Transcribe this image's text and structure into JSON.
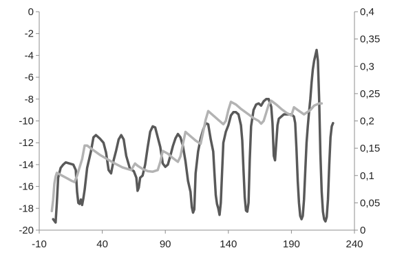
{
  "chart_data": {
    "type": "line",
    "title": "",
    "xlabel": "",
    "ylabel": "",
    "y2label": "",
    "xlim": [
      -10,
      240
    ],
    "ylim": [
      -20,
      0
    ],
    "y2lim": [
      0,
      0.4
    ],
    "x_ticks": [
      {
        "value": -10,
        "label": "-10"
      },
      {
        "value": 40,
        "label": "40"
      },
      {
        "value": 90,
        "label": "90"
      },
      {
        "value": 140,
        "label": "140"
      },
      {
        "value": 190,
        "label": "190"
      },
      {
        "value": 240,
        "label": "240"
      }
    ],
    "y_ticks": [
      {
        "value": 0,
        "label": "0"
      },
      {
        "value": -2,
        "label": "-2"
      },
      {
        "value": -4,
        "label": "-4"
      },
      {
        "value": -6,
        "label": "-6"
      },
      {
        "value": -8,
        "label": "-8"
      },
      {
        "value": -10,
        "label": "-10"
      },
      {
        "value": -12,
        "label": "-12"
      },
      {
        "value": -14,
        "label": "-14"
      },
      {
        "value": -16,
        "label": "-16"
      },
      {
        "value": -18,
        "label": "-18"
      },
      {
        "value": -20,
        "label": "-20"
      }
    ],
    "y2_ticks": [
      {
        "value": 0,
        "label": "0"
      },
      {
        "value": 0.05,
        "label": "0,05"
      },
      {
        "value": 0.1,
        "label": "0,1"
      },
      {
        "value": 0.15,
        "label": "0,15"
      },
      {
        "value": 0.2,
        "label": "0,2"
      },
      {
        "value": 0.25,
        "label": "0,25"
      },
      {
        "value": 0.3,
        "label": "0,3"
      },
      {
        "value": 0.35,
        "label": "0,35"
      },
      {
        "value": 0.4,
        "label": "0,4"
      }
    ],
    "grid": false,
    "legend": "none",
    "series": [
      {
        "axis": "left",
        "color": "#595959",
        "points": [
          [
            1,
            -19
          ],
          [
            3,
            -19.3
          ],
          [
            4,
            -17.5
          ],
          [
            5,
            -15.2
          ],
          [
            7,
            -14.3
          ],
          [
            9,
            -14
          ],
          [
            11,
            -13.8
          ],
          [
            14,
            -13.9
          ],
          [
            17,
            -14
          ],
          [
            19,
            -14.5
          ],
          [
            20,
            -16.5
          ],
          [
            21,
            -17.5
          ],
          [
            22,
            -17.6
          ],
          [
            23,
            -17.2
          ],
          [
            24,
            -17.7
          ],
          [
            25,
            -17.1
          ],
          [
            26,
            -16.3
          ],
          [
            28,
            -14.3
          ],
          [
            31,
            -12.8
          ],
          [
            33,
            -11.5
          ],
          [
            35,
            -11.3
          ],
          [
            38,
            -11.6
          ],
          [
            41,
            -12
          ],
          [
            43,
            -12.9
          ],
          [
            45,
            -14.5
          ],
          [
            47,
            -14.8
          ],
          [
            49,
            -13.6
          ],
          [
            51,
            -12.7
          ],
          [
            53,
            -11.7
          ],
          [
            55,
            -11.3
          ],
          [
            57,
            -11.7
          ],
          [
            59,
            -13.2
          ],
          [
            62,
            -14.4
          ],
          [
            65,
            -14.6
          ],
          [
            67,
            -15.2
          ],
          [
            68,
            -16.4
          ],
          [
            69,
            -16.1
          ],
          [
            70,
            -15.2
          ],
          [
            72,
            -15
          ],
          [
            74,
            -14
          ],
          [
            76,
            -12.4
          ],
          [
            78,
            -11
          ],
          [
            80,
            -10.5
          ],
          [
            82,
            -10.6
          ],
          [
            84,
            -11.5
          ],
          [
            86,
            -12.4
          ],
          [
            88,
            -13.9
          ],
          [
            90,
            -14.2
          ],
          [
            92,
            -14
          ],
          [
            94,
            -13.2
          ],
          [
            96,
            -12.3
          ],
          [
            98,
            -11.6
          ],
          [
            100,
            -11.2
          ],
          [
            102,
            -11.5
          ],
          [
            104,
            -12.3
          ],
          [
            106,
            -13.7
          ],
          [
            108,
            -15.5
          ],
          [
            110,
            -16.5
          ],
          [
            111,
            -17.9
          ],
          [
            112,
            -18.4
          ],
          [
            113,
            -18.1
          ],
          [
            114,
            -14.8
          ],
          [
            116,
            -12.8
          ],
          [
            118,
            -11.6
          ],
          [
            120,
            -10.8
          ],
          [
            122,
            -10.2
          ],
          [
            124,
            -10.3
          ],
          [
            126,
            -11.7
          ],
          [
            128,
            -12.8
          ],
          [
            129,
            -14.8
          ],
          [
            130,
            -16.8
          ],
          [
            131,
            -17.6
          ],
          [
            132,
            -18
          ],
          [
            133,
            -18.6
          ],
          [
            134,
            -17.5
          ],
          [
            135,
            -14.8
          ],
          [
            136,
            -12
          ],
          [
            138,
            -11
          ],
          [
            140,
            -10.4
          ],
          [
            142,
            -9.5
          ],
          [
            144,
            -9.2
          ],
          [
            146,
            -9.2
          ],
          [
            148,
            -9.4
          ],
          [
            150,
            -10.4
          ],
          [
            151,
            -11.8
          ],
          [
            152,
            -14.5
          ],
          [
            153,
            -17
          ],
          [
            154,
            -18.2
          ],
          [
            155,
            -18.3
          ],
          [
            156,
            -17.5
          ],
          [
            157,
            -13.5
          ],
          [
            158,
            -10.5
          ],
          [
            160,
            -9
          ],
          [
            162,
            -8.5
          ],
          [
            164,
            -8.4
          ],
          [
            166,
            -8.6
          ],
          [
            168,
            -8.2
          ],
          [
            170,
            -8
          ],
          [
            172,
            -8
          ],
          [
            174,
            -8.7
          ],
          [
            175,
            -10.2
          ],
          [
            176,
            -13.2
          ],
          [
            177,
            -13.6
          ],
          [
            178,
            -12
          ],
          [
            179,
            -10.4
          ],
          [
            180,
            -9.8
          ],
          [
            182,
            -9.6
          ],
          [
            184,
            -9.4
          ],
          [
            188,
            -9.4
          ],
          [
            190,
            -9.4
          ],
          [
            192,
            -9.6
          ],
          [
            193,
            -10.2
          ],
          [
            194,
            -12.5
          ],
          [
            195,
            -15.5
          ],
          [
            196,
            -17.5
          ],
          [
            197,
            -18.7
          ],
          [
            198,
            -19
          ],
          [
            199,
            -18.7
          ],
          [
            200,
            -17.2
          ],
          [
            201,
            -14.5
          ],
          [
            202,
            -12
          ],
          [
            203,
            -10.5
          ],
          [
            204,
            -9.2
          ],
          [
            205,
            -8
          ],
          [
            206,
            -6.5
          ],
          [
            207,
            -5.3
          ],
          [
            208,
            -4.5
          ],
          [
            209,
            -4
          ],
          [
            210,
            -3.5
          ],
          [
            211,
            -4.5
          ],
          [
            212,
            -8
          ],
          [
            213,
            -13
          ],
          [
            214,
            -16.5
          ],
          [
            215,
            -18.3
          ],
          [
            216,
            -19
          ],
          [
            217,
            -19.2
          ],
          [
            218,
            -18.8
          ],
          [
            219,
            -17.2
          ],
          [
            220,
            -14
          ],
          [
            221,
            -11.5
          ],
          [
            222,
            -10.5
          ],
          [
            223,
            -10.2
          ]
        ]
      },
      {
        "axis": "right",
        "color": "#b3b3b3",
        "points": [
          [
            0,
            0.035
          ],
          [
            1,
            0.055
          ],
          [
            2,
            0.085
          ],
          [
            3,
            0.098
          ],
          [
            4,
            0.105
          ],
          [
            8,
            0.1
          ],
          [
            12,
            0.095
          ],
          [
            16,
            0.09
          ],
          [
            18,
            0.088
          ],
          [
            20,
            0.1
          ],
          [
            24,
            0.13
          ],
          [
            26,
            0.155
          ],
          [
            28,
            0.155
          ],
          [
            32,
            0.148
          ],
          [
            38,
            0.138
          ],
          [
            44,
            0.13
          ],
          [
            50,
            0.122
          ],
          [
            56,
            0.115
          ],
          [
            60,
            0.112
          ],
          [
            63,
            0.11
          ],
          [
            66,
            0.122
          ],
          [
            68,
            0.118
          ],
          [
            72,
            0.112
          ],
          [
            76,
            0.108
          ],
          [
            80,
            0.107
          ],
          [
            84,
            0.11
          ],
          [
            86,
            0.125
          ],
          [
            88,
            0.145
          ],
          [
            92,
            0.14
          ],
          [
            96,
            0.132
          ],
          [
            100,
            0.125
          ],
          [
            102,
            0.135
          ],
          [
            104,
            0.158
          ],
          [
            106,
            0.18
          ],
          [
            110,
            0.172
          ],
          [
            114,
            0.164
          ],
          [
            118,
            0.158
          ],
          [
            120,
            0.18
          ],
          [
            122,
            0.202
          ],
          [
            124,
            0.218
          ],
          [
            128,
            0.21
          ],
          [
            132,
            0.202
          ],
          [
            136,
            0.194
          ],
          [
            138,
            0.2
          ],
          [
            140,
            0.22
          ],
          [
            142,
            0.235
          ],
          [
            146,
            0.23
          ],
          [
            150,
            0.222
          ],
          [
            156,
            0.212
          ],
          [
            160,
            0.205
          ],
          [
            164,
            0.2
          ],
          [
            166,
            0.195
          ],
          [
            168,
            0.2
          ],
          [
            170,
            0.215
          ],
          [
            172,
            0.23
          ],
          [
            174,
            0.237
          ],
          [
            178,
            0.23
          ],
          [
            182,
            0.222
          ],
          [
            186,
            0.215
          ],
          [
            190,
            0.21
          ],
          [
            192,
            0.225
          ],
          [
            195,
            0.22
          ],
          [
            200,
            0.212
          ],
          [
            205,
            0.22
          ],
          [
            208,
            0.228
          ],
          [
            212,
            0.232
          ],
          [
            214,
            0.232
          ]
        ]
      }
    ]
  }
}
